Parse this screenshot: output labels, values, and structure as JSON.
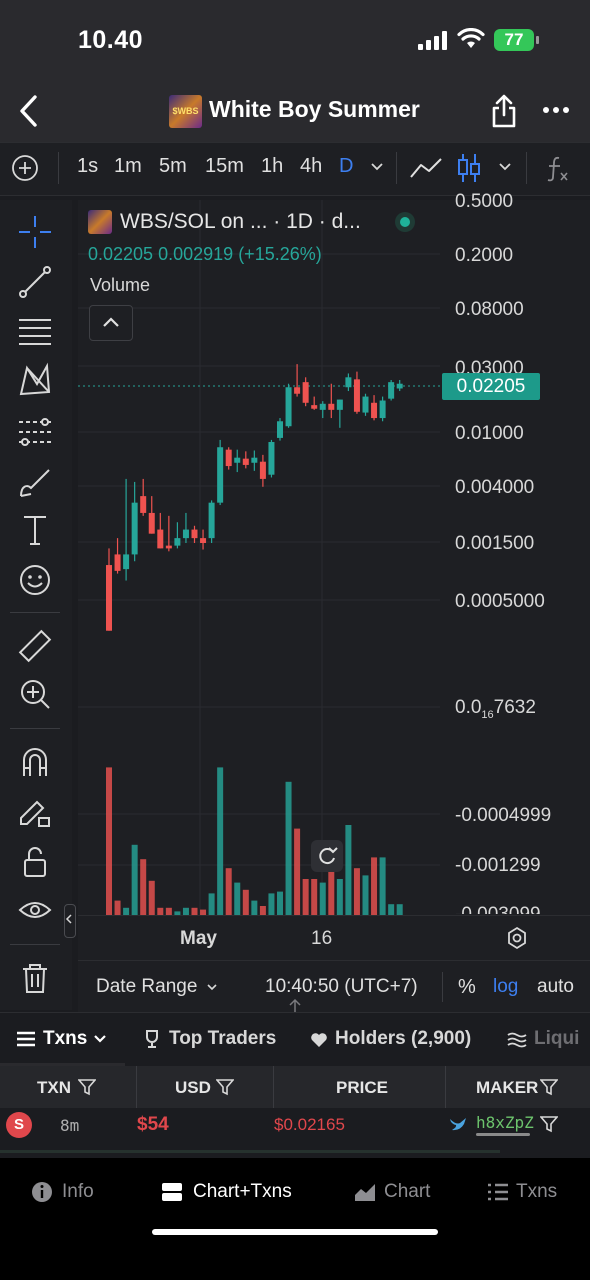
{
  "status": {
    "time": "10.40",
    "battery": "77"
  },
  "header": {
    "title": "White Boy Summer",
    "logo_text": "$WBS"
  },
  "timeframes": [
    "1s",
    "1m",
    "5m",
    "15m",
    "1h",
    "4h",
    "D"
  ],
  "legend": {
    "symbol": "WBS/SOL on ... · 1D · d...",
    "last": "0.02205",
    "change": "0.002919",
    "change_pct": "(+15.26%)",
    "volume_label": "Volume"
  },
  "price_axis": [
    "0.5000",
    "0.2000",
    "0.08000",
    "0.03000",
    "0.01000",
    "0.004000",
    "0.001500",
    "0.0005000"
  ],
  "current_price": "0.02205",
  "volume_axis": {
    "sub_prefix": "0.0",
    "sub_digits": "16",
    "sub_suffix": "7632",
    "labels": [
      "-0.0004999",
      "-0.001299",
      "-0.003099"
    ]
  },
  "x_axis": [
    "May",
    "16"
  ],
  "bottom_bar": {
    "date_range": "Date Range",
    "clock": "10:40:50 (UTC+7)",
    "percent": "%",
    "log": "log",
    "auto": "auto"
  },
  "tabs": {
    "txns": "Txns",
    "top_traders": "Top Traders",
    "holders": "Holders (2,900)",
    "liquidity": "Liqui"
  },
  "table": {
    "headers": [
      "TXN",
      "USD",
      "PRICE",
      "MAKER"
    ],
    "row": {
      "type": "S",
      "age": "8m",
      "usd": "$54",
      "price": "$0.02165",
      "maker": "h8xZpZ"
    }
  },
  "bottom_nav": {
    "info": "Info",
    "chart_txns": "Chart+Txns",
    "chart": "Chart",
    "txns": "Txns"
  },
  "colors": {
    "up": "#26a69a",
    "down": "#ef5350",
    "accent": "#3d7ff0"
  },
  "chart_data": {
    "type": "candlestick",
    "y_scale": "log",
    "candles": [
      {
        "o": 0.00065,
        "h": 0.0009,
        "l": 0.00018,
        "c": 0.00018,
        "dir": "down_is_bottom"
      },
      {
        "o": 0.0008,
        "h": 0.0011,
        "l": 0.00055,
        "c": 0.00058
      },
      {
        "o": 0.0006,
        "h": 0.0035,
        "l": 0.00048,
        "c": 0.0008
      },
      {
        "o": 0.0008,
        "h": 0.0033,
        "l": 0.0007,
        "c": 0.0022
      },
      {
        "o": 0.0025,
        "h": 0.0035,
        "l": 0.0017,
        "c": 0.0018
      },
      {
        "o": 0.0018,
        "h": 0.0025,
        "l": 0.0012,
        "c": 0.0012
      },
      {
        "o": 0.0013,
        "h": 0.0018,
        "l": 0.0009,
        "c": 0.0009
      },
      {
        "o": 0.00095,
        "h": 0.0017,
        "l": 0.00085,
        "c": 0.0009
      },
      {
        "o": 0.00095,
        "h": 0.0015,
        "l": 0.0009,
        "c": 0.0011
      },
      {
        "o": 0.0011,
        "h": 0.0018,
        "l": 0.001,
        "c": 0.0013
      },
      {
        "o": 0.0013,
        "h": 0.0014,
        "l": 0.001,
        "c": 0.0011
      },
      {
        "o": 0.0011,
        "h": 0.0013,
        "l": 0.00088,
        "c": 0.001
      },
      {
        "o": 0.0011,
        "h": 0.0023,
        "l": 0.001,
        "c": 0.0022
      },
      {
        "o": 0.0022,
        "h": 0.0075,
        "l": 0.0021,
        "c": 0.0065
      },
      {
        "o": 0.0062,
        "h": 0.0065,
        "l": 0.0042,
        "c": 0.0045
      },
      {
        "o": 0.0048,
        "h": 0.0062,
        "l": 0.004,
        "c": 0.0053
      },
      {
        "o": 0.0052,
        "h": 0.006,
        "l": 0.0043,
        "c": 0.0046
      },
      {
        "o": 0.0048,
        "h": 0.0061,
        "l": 0.0041,
        "c": 0.0053
      },
      {
        "o": 0.0049,
        "h": 0.0056,
        "l": 0.003,
        "c": 0.0035
      },
      {
        "o": 0.0038,
        "h": 0.0075,
        "l": 0.0036,
        "c": 0.0072
      },
      {
        "o": 0.0078,
        "h": 0.0115,
        "l": 0.0074,
        "c": 0.0108
      },
      {
        "o": 0.0098,
        "h": 0.0225,
        "l": 0.0095,
        "c": 0.021
      },
      {
        "o": 0.021,
        "h": 0.033,
        "l": 0.0175,
        "c": 0.0185
      },
      {
        "o": 0.0232,
        "h": 0.0255,
        "l": 0.0145,
        "c": 0.0155
      },
      {
        "o": 0.0148,
        "h": 0.0175,
        "l": 0.0135,
        "c": 0.0138
      },
      {
        "o": 0.0135,
        "h": 0.016,
        "l": 0.0115,
        "c": 0.0152
      },
      {
        "o": 0.0152,
        "h": 0.0225,
        "l": 0.0115,
        "c": 0.0135
      },
      {
        "o": 0.0135,
        "h": 0.0165,
        "l": 0.0095,
        "c": 0.0165
      },
      {
        "o": 0.021,
        "h": 0.0275,
        "l": 0.0195,
        "c": 0.0255
      },
      {
        "o": 0.0245,
        "h": 0.0285,
        "l": 0.0125,
        "c": 0.013
      },
      {
        "o": 0.0128,
        "h": 0.0185,
        "l": 0.012,
        "c": 0.0175
      },
      {
        "o": 0.0155,
        "h": 0.018,
        "l": 0.011,
        "c": 0.0115
      },
      {
        "o": 0.0115,
        "h": 0.0175,
        "l": 0.0108,
        "c": 0.0162
      },
      {
        "o": 0.0168,
        "h": 0.0242,
        "l": 0.0162,
        "c": 0.0232
      },
      {
        "o": 0.0205,
        "h": 0.0242,
        "l": 0.0195,
        "c": 0.0225
      }
    ],
    "volume_heights_rel": [
      0.82,
      0.08,
      0.04,
      0.39,
      0.31,
      0.19,
      0.04,
      0.04,
      0.02,
      0.04,
      0.04,
      0.03,
      0.12,
      0.82,
      0.26,
      0.18,
      0.14,
      0.08,
      0.05,
      0.12,
      0.13,
      0.74,
      0.48,
      0.2,
      0.2,
      0.18,
      0.24,
      0.2,
      0.5,
      0.26,
      0.22,
      0.32,
      0.32,
      0.06,
      0.06
    ]
  }
}
